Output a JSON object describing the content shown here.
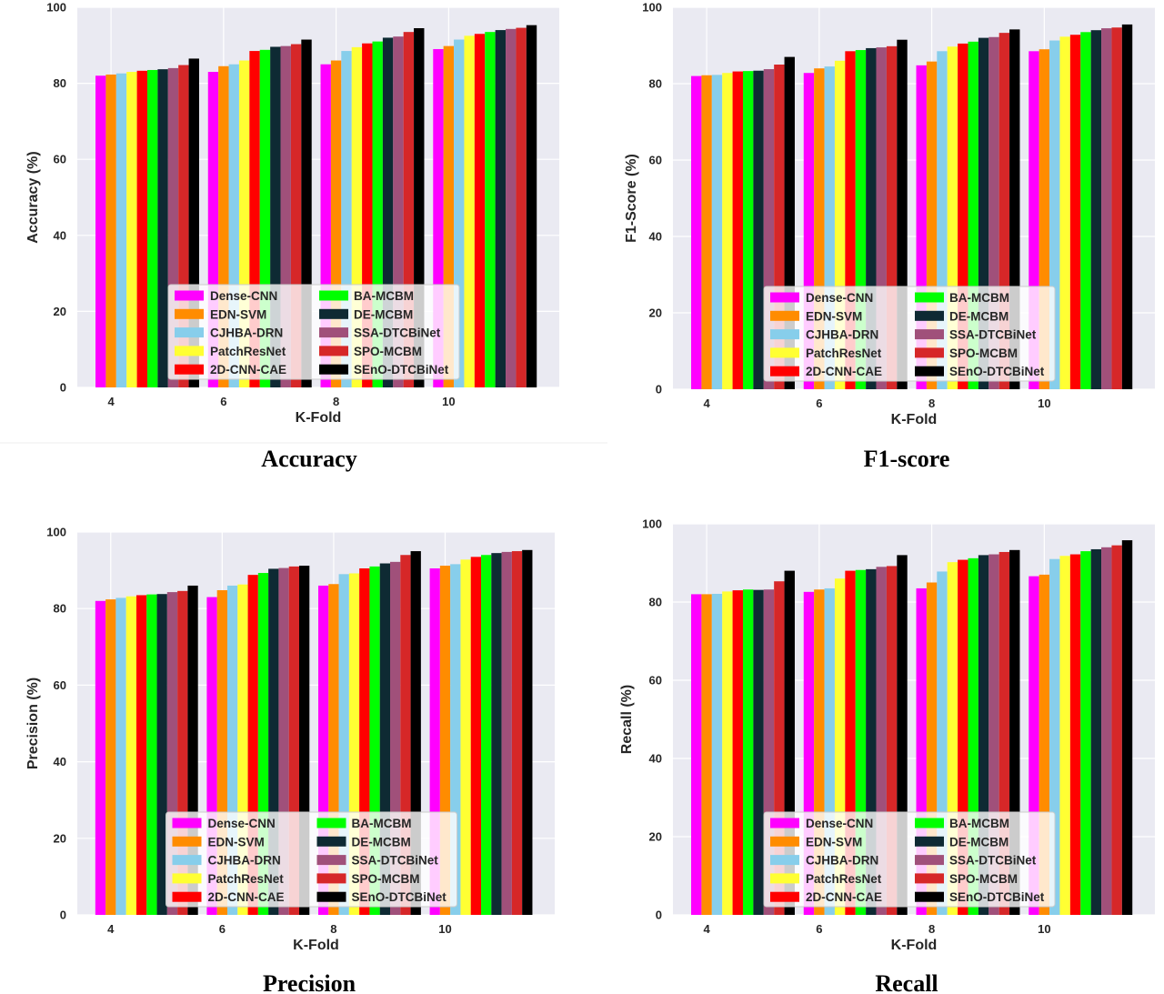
{
  "chart_data": [
    {
      "type": "bar",
      "title": "Accuracy",
      "xlabel": "K-Fold",
      "ylabel": "Accuracy (%)",
      "categories": [
        "4",
        "6",
        "8",
        "10"
      ],
      "ylim": [
        0,
        100
      ],
      "yticks": [
        0,
        20,
        40,
        60,
        80,
        100
      ],
      "grid": true,
      "legend": "lower center",
      "series": [
        {
          "name": "Dense-CNN",
          "color": "#FF00FF",
          "values": [
            82.0,
            83.0,
            85.0,
            89.0
          ]
        },
        {
          "name": "EDN-SVM",
          "color": "#FF8C00",
          "values": [
            82.3,
            84.5,
            86.0,
            89.8
          ]
        },
        {
          "name": "CJHBA-DRN",
          "color": "#87CEEB",
          "values": [
            82.6,
            85.0,
            88.5,
            91.5
          ]
        },
        {
          "name": "PatchResNet",
          "color": "#FFFF33",
          "values": [
            83.0,
            86.0,
            89.5,
            92.5
          ]
        },
        {
          "name": "2D-CNN-CAE",
          "color": "#FF0000",
          "values": [
            83.3,
            88.5,
            90.5,
            93.0
          ]
        },
        {
          "name": "BA-MCBM",
          "color": "#00FF00",
          "values": [
            83.5,
            88.8,
            91.0,
            93.5
          ]
        },
        {
          "name": "DE-MCBM",
          "color": "#0E2A33",
          "values": [
            83.7,
            89.6,
            92.0,
            94.0
          ]
        },
        {
          "name": "SSA-DTCBiNet",
          "color": "#A0507A",
          "values": [
            84.0,
            89.8,
            92.3,
            94.3
          ]
        },
        {
          "name": "SPO-MCBM",
          "color": "#D62728",
          "values": [
            84.8,
            90.3,
            93.5,
            94.6
          ]
        },
        {
          "name": "SEnO-DTCBiNet",
          "color": "#000000",
          "values": [
            86.5,
            91.5,
            94.5,
            95.3
          ]
        }
      ]
    },
    {
      "type": "bar",
      "title": "F1-score",
      "xlabel": "K-Fold",
      "ylabel": "F1-Score (%)",
      "categories": [
        "4",
        "6",
        "8",
        "10"
      ],
      "ylim": [
        0,
        100
      ],
      "yticks": [
        0,
        20,
        40,
        60,
        80,
        100
      ],
      "grid": true,
      "legend": "lower center",
      "series": [
        {
          "name": "Dense-CNN",
          "color": "#FF00FF",
          "values": [
            82.0,
            82.8,
            84.8,
            88.5
          ]
        },
        {
          "name": "EDN-SVM",
          "color": "#FF8C00",
          "values": [
            82.2,
            84.0,
            85.8,
            89.0
          ]
        },
        {
          "name": "CJHBA-DRN",
          "color": "#87CEEB",
          "values": [
            82.3,
            84.5,
            88.5,
            91.3
          ]
        },
        {
          "name": "PatchResNet",
          "color": "#FFFF33",
          "values": [
            82.8,
            86.0,
            89.7,
            92.3
          ]
        },
        {
          "name": "2D-CNN-CAE",
          "color": "#FF0000",
          "values": [
            83.2,
            88.5,
            90.5,
            92.8
          ]
        },
        {
          "name": "BA-MCBM",
          "color": "#00FF00",
          "values": [
            83.3,
            88.8,
            91.0,
            93.5
          ]
        },
        {
          "name": "DE-MCBM",
          "color": "#0E2A33",
          "values": [
            83.4,
            89.3,
            92.0,
            94.0
          ]
        },
        {
          "name": "SSA-DTCBiNet",
          "color": "#A0507A",
          "values": [
            83.8,
            89.5,
            92.2,
            94.5
          ]
        },
        {
          "name": "SPO-MCBM",
          "color": "#D62728",
          "values": [
            85.0,
            89.8,
            93.3,
            94.7
          ]
        },
        {
          "name": "SEnO-DTCBiNet",
          "color": "#000000",
          "values": [
            87.0,
            91.5,
            94.2,
            95.5
          ]
        }
      ]
    },
    {
      "type": "bar",
      "title": "Precision",
      "xlabel": "K-Fold",
      "ylabel": "Precision (%)",
      "categories": [
        "4",
        "6",
        "8",
        "10"
      ],
      "ylim": [
        0,
        100
      ],
      "yticks": [
        0,
        20,
        40,
        60,
        80,
        100
      ],
      "grid": true,
      "legend": "lower center",
      "series": [
        {
          "name": "Dense-CNN",
          "color": "#FF00FF",
          "values": [
            82.0,
            83.0,
            86.0,
            90.5
          ]
        },
        {
          "name": "EDN-SVM",
          "color": "#FF8C00",
          "values": [
            82.4,
            84.8,
            86.4,
            91.2
          ]
        },
        {
          "name": "CJHBA-DRN",
          "color": "#87CEEB",
          "values": [
            82.8,
            86.0,
            89.0,
            91.6
          ]
        },
        {
          "name": "PatchResNet",
          "color": "#FFFF33",
          "values": [
            83.2,
            86.3,
            89.2,
            92.8
          ]
        },
        {
          "name": "2D-CNN-CAE",
          "color": "#FF0000",
          "values": [
            83.5,
            88.8,
            90.5,
            93.5
          ]
        },
        {
          "name": "BA-MCBM",
          "color": "#00FF00",
          "values": [
            83.7,
            89.3,
            91.0,
            94.0
          ]
        },
        {
          "name": "DE-MCBM",
          "color": "#0E2A33",
          "values": [
            83.8,
            90.4,
            91.8,
            94.5
          ]
        },
        {
          "name": "SSA-DTCBiNet",
          "color": "#A0507A",
          "values": [
            84.3,
            90.6,
            92.2,
            94.8
          ]
        },
        {
          "name": "SPO-MCBM",
          "color": "#D62728",
          "values": [
            84.6,
            91.0,
            94.0,
            95.0
          ]
        },
        {
          "name": "SEnO-DTCBiNet",
          "color": "#000000",
          "values": [
            86.0,
            91.2,
            95.0,
            95.3
          ]
        }
      ]
    },
    {
      "type": "bar",
      "title": "Recall",
      "xlabel": "K-Fold",
      "ylabel": "Recall (%)",
      "categories": [
        "4",
        "6",
        "8",
        "10"
      ],
      "ylim": [
        0,
        100
      ],
      "yticks": [
        0,
        20,
        40,
        60,
        80,
        100
      ],
      "grid": true,
      "legend": "lower center",
      "series": [
        {
          "name": "Dense-CNN",
          "color": "#FF00FF",
          "values": [
            82.0,
            82.6,
            83.5,
            86.6
          ]
        },
        {
          "name": "EDN-SVM",
          "color": "#FF8C00",
          "values": [
            82.0,
            83.2,
            85.0,
            87.0
          ]
        },
        {
          "name": "CJHBA-DRN",
          "color": "#87CEEB",
          "values": [
            82.1,
            83.5,
            87.8,
            91.0
          ]
        },
        {
          "name": "PatchResNet",
          "color": "#FFFF33",
          "values": [
            82.7,
            86.0,
            90.2,
            91.8
          ]
        },
        {
          "name": "2D-CNN-CAE",
          "color": "#FF0000",
          "values": [
            83.0,
            88.0,
            90.8,
            92.2
          ]
        },
        {
          "name": "BA-MCBM",
          "color": "#00FF00",
          "values": [
            83.2,
            88.2,
            91.2,
            93.0
          ]
        },
        {
          "name": "DE-MCBM",
          "color": "#0E2A33",
          "values": [
            83.1,
            88.4,
            92.0,
            93.5
          ]
        },
        {
          "name": "SSA-DTCBiNet",
          "color": "#A0507A",
          "values": [
            83.2,
            89.0,
            92.2,
            94.0
          ]
        },
        {
          "name": "SPO-MCBM",
          "color": "#D62728",
          "values": [
            85.3,
            89.2,
            92.8,
            94.5
          ]
        },
        {
          "name": "SEnO-DTCBiNet",
          "color": "#000000",
          "values": [
            88.0,
            92.0,
            93.3,
            95.8
          ]
        }
      ]
    }
  ]
}
